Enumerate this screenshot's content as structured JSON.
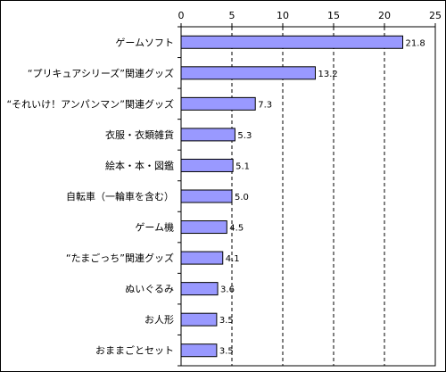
{
  "chart_data": {
    "type": "bar",
    "orientation": "horizontal",
    "categories": [
      "ゲームソフト",
      "“プリキュアシリーズ”関連グッズ",
      "“それいけ！アンパンマン”関連グッズ",
      "衣服・衣類雑貨",
      "絵本・本・図鑑",
      "自転車（一輪車を含む）",
      "ゲーム機",
      "“たまごっち”関連グッズ",
      "ぬいぐるみ",
      "お人形",
      "おままごとセット"
    ],
    "values": [
      21.8,
      13.2,
      7.3,
      5.3,
      5.1,
      5.0,
      4.5,
      4.1,
      3.6,
      3.5,
      3.5
    ],
    "value_labels": [
      "21.8",
      "13.2",
      "7.3",
      "5.3",
      "5.1",
      "5.0",
      "4.5",
      "4.1",
      "3.6",
      "3.5",
      "3.5"
    ],
    "xlim": [
      0,
      25
    ],
    "xticks": [
      "0",
      "5",
      "10",
      "15",
      "20",
      "25"
    ],
    "x_axis_position": "top",
    "grid": "vertical dashed",
    "bar_color": "#9999ff",
    "bar_border_color": "#000000",
    "title": "",
    "xlabel": "",
    "ylabel": ""
  }
}
